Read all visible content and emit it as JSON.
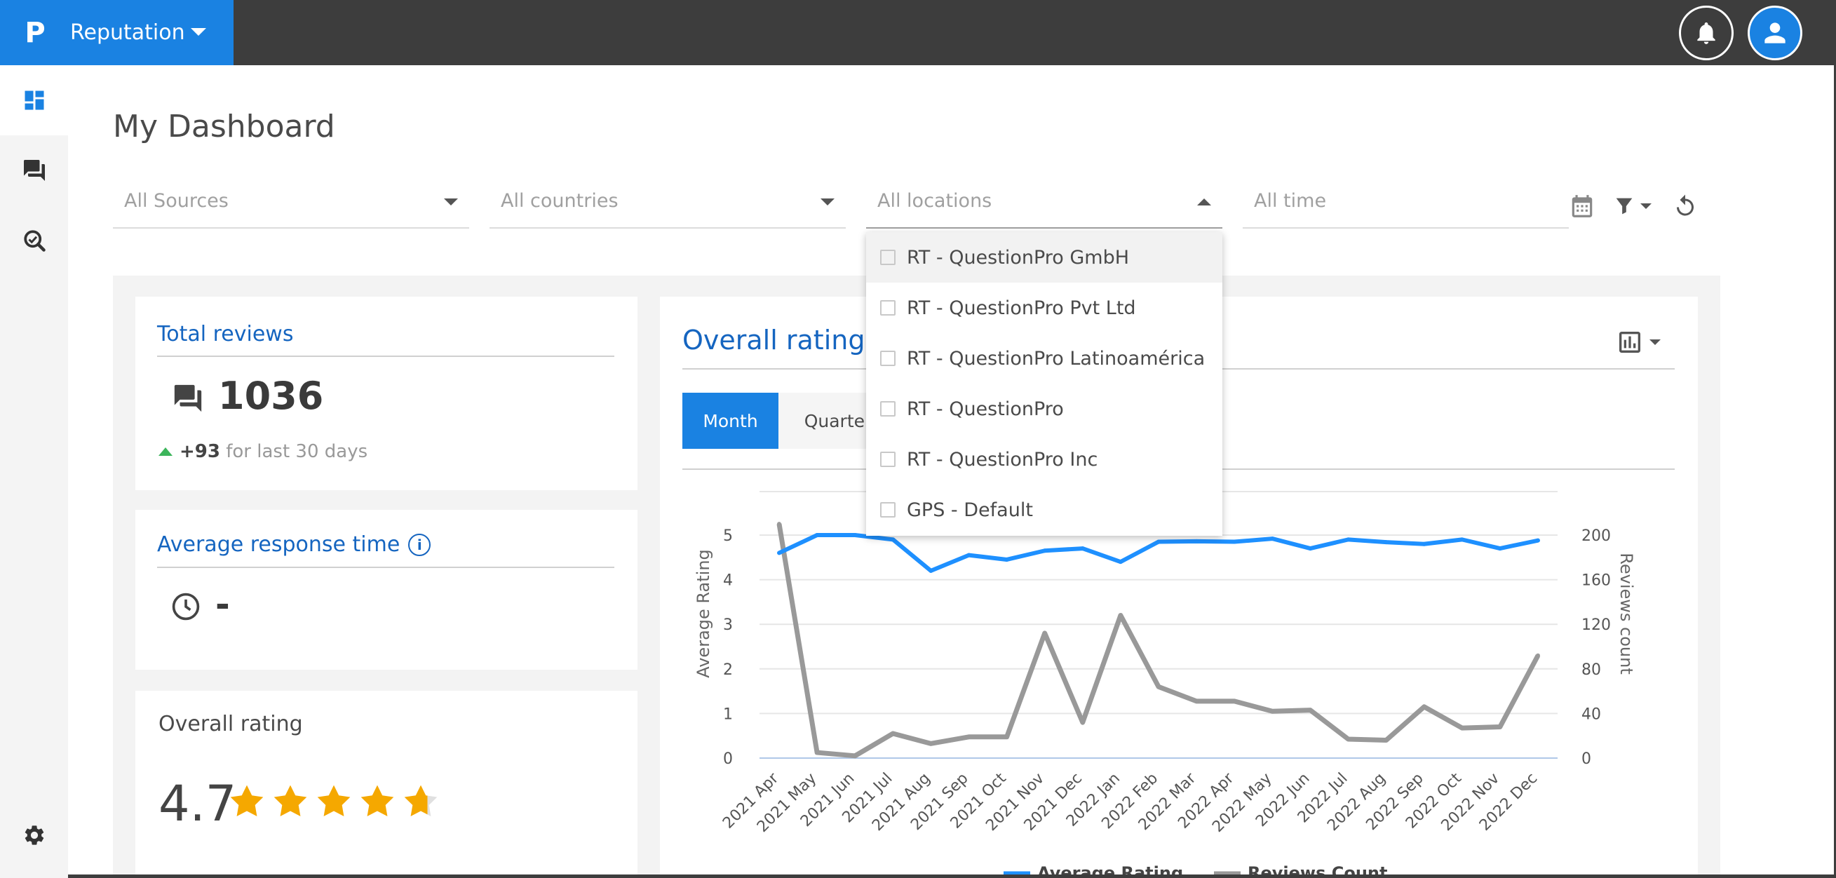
{
  "brand": {
    "name": "Reputation",
    "logo_letter": "P"
  },
  "page": {
    "title": "My Dashboard"
  },
  "filters": {
    "sources": "All Sources",
    "countries": "All countries",
    "locations": "All locations",
    "time": "All time"
  },
  "locations_dropdown": {
    "options": [
      "RT - QuestionPro GmbH",
      "RT - QuestionPro Pvt Ltd",
      "RT - QuestionPro Latinoamérica",
      "RT - QuestionPro",
      "RT - QuestionPro Inc",
      "GPS - Default"
    ]
  },
  "total_reviews": {
    "title": "Total reviews",
    "value": "1036",
    "delta": "+93",
    "delta_suffix": "for last 30 days"
  },
  "avg_response": {
    "title": "Average response time",
    "value": "-"
  },
  "overall_small": {
    "title": "Overall rating",
    "value": "4.7",
    "stars": 4.7
  },
  "overall_chart_card": {
    "title": "Overall rating",
    "tabs": [
      "Month",
      "Quarter"
    ],
    "active_tab": "Month"
  },
  "legend": [
    "Average Rating",
    "Reviews Count"
  ],
  "colors": {
    "brand": "#1a82e2",
    "rating_line": "#1e90ff",
    "count_line": "#999999",
    "star": "#f5a800",
    "up_arrow": "#3cb55b"
  },
  "icons": {
    "sidebar": [
      "dashboard-icon",
      "reviews-icon",
      "search-insights-icon",
      "settings-icon"
    ],
    "header": [
      "bell-icon",
      "user-icon"
    ]
  },
  "chart_data": {
    "type": "line",
    "categories": [
      "2021 Apr",
      "2021 May",
      "2021 Jun",
      "2021 Jul",
      "2021 Aug",
      "2021 Sep",
      "2021 Oct",
      "2021 Nov",
      "2021 Dec",
      "2022 Jan",
      "2022 Feb",
      "2022 Mar",
      "2022 Apr",
      "2022 May",
      "2022 Jun",
      "2022 Jul",
      "2022 Aug",
      "2022 Sep",
      "2022 Oct",
      "2022 Nov",
      "2022 Dec"
    ],
    "series": [
      {
        "name": "Average Rating",
        "axis": "left",
        "values": [
          4.6,
          5.0,
          5.0,
          4.9,
          4.2,
          4.55,
          4.45,
          4.65,
          4.7,
          4.4,
          4.85,
          4.86,
          4.85,
          4.92,
          4.7,
          4.9,
          4.84,
          4.8,
          4.9,
          4.7,
          4.88
        ]
      },
      {
        "name": "Reviews Count",
        "axis": "right",
        "values": [
          210,
          5,
          2,
          22,
          13,
          19,
          19,
          112,
          32,
          128,
          64,
          51,
          51,
          42,
          43,
          17,
          16,
          46,
          27,
          28,
          92
        ]
      }
    ],
    "ylabel": "Average Rating",
    "ylim": [
      0,
      5
    ],
    "yticks": [
      0,
      1,
      2,
      3,
      4,
      5
    ],
    "y2label": "Reviews count",
    "y2lim": [
      0,
      200
    ],
    "y2ticks": [
      0,
      40,
      80,
      120,
      160,
      200
    ],
    "grid": true,
    "legend": "bottom"
  }
}
